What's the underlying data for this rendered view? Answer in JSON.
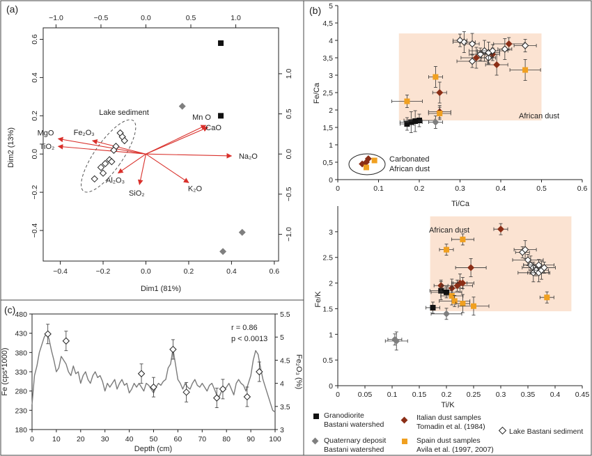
{
  "panels": {
    "a": {
      "label": "(a)",
      "bottom_axis_label": "Dim1 (81%)",
      "left_axis_label": "Dim2 (13%)",
      "ellipse_label": "Lake sediment",
      "bottom_ticks": [
        "−0.4",
        "−0.2",
        "0.0",
        "0.2",
        "0.4",
        "0.6"
      ],
      "left_ticks": [
        "−0.4",
        "−0.2",
        "0.0",
        "0.2",
        "0.4",
        "0.6"
      ],
      "top_ticks": [
        "−1.0",
        "−0.5",
        "0.0",
        "0.5",
        "1.0"
      ],
      "right_ticks": [
        "−1.0",
        "−0.5",
        "0.0",
        "0.5",
        "1.0"
      ],
      "arrow_labels": {
        "mgo": "MgO",
        "fe2o3": "Fe₂O₃",
        "tio2": "TiO₂",
        "al2o3": "Al₂O₃",
        "sio2": "SiO₂",
        "k2o": "K₂O",
        "na2o": "Na₂O",
        "mno": "Mn O",
        "cao": "CaO"
      }
    },
    "b": {
      "label": "(b)",
      "top_ylabel": "Fe/Ca",
      "top_xlabel": "Ti/Ca",
      "top_region_label": "African dust",
      "top_cluster_label_1": "Carbonated",
      "top_cluster_label_2": "African dust",
      "bottom_ylabel": "Fe/K",
      "bottom_xlabel": "Ti/K",
      "bottom_region_label": "African dust"
    },
    "c": {
      "label": "(c)",
      "left_axis_label": "Fe (cps*1000)",
      "right_axis_label": "Fe₂O₃ (%)",
      "xlabel": "Depth (cm)",
      "stat_r": "r = 0.86",
      "stat_p": "p  < 0.0013"
    }
  },
  "legend": {
    "granodiorite_1": "Granodiorite",
    "granodiorite_2": "Bastani watershed",
    "quaternary_1": "Quaternary deposit",
    "quaternary_2": "Bastani watershed",
    "italian_1": "Italian dust samples",
    "italian_2": "Tomadin et al.  (1984)",
    "spain_1": "Spain dust samples",
    "spain_2": "Avila et al.  (1997, 2007)",
    "lake": "Lake Bastani sediment"
  },
  "colors": {
    "arrow": "#d9302b",
    "granodiorite": "#111111",
    "quaternary": "#7f7f7f",
    "italian": "#8b2e16",
    "spain": "#f0a020",
    "lake": "#ffffff",
    "dust_region": "#fbe3d2",
    "fe_line": "#7a7a7a"
  },
  "chart_data": [
    {
      "type": "scatter",
      "panel": "a",
      "title": "",
      "xlabel": "Dim1 (81%)",
      "ylabel": "Dim2 (13%)",
      "xlim": [
        -0.48,
        0.62
      ],
      "ylim": [
        -0.56,
        0.66
      ],
      "secondary_x_ticks": [
        -1.0,
        -0.5,
        0.0,
        0.5,
        1.0
      ],
      "secondary_y_ticks": [
        -1.0,
        -0.5,
        0.0,
        0.5,
        1.0
      ],
      "arrows": [
        {
          "name": "MgO",
          "x": -0.41,
          "y": 0.08
        },
        {
          "name": "Fe₂O₃",
          "x": -0.25,
          "y": 0.07
        },
        {
          "name": "TiO₂",
          "x": -0.41,
          "y": 0.04
        },
        {
          "name": "Al₂O₃",
          "x": -0.13,
          "y": -0.1
        },
        {
          "name": "SiO₂",
          "x": -0.03,
          "y": -0.16
        },
        {
          "name": "K₂O",
          "x": 0.2,
          "y": -0.15
        },
        {
          "name": "Na₂O",
          "x": 0.4,
          "y": -0.01
        },
        {
          "name": "Mn O",
          "x": 0.28,
          "y": 0.15
        },
        {
          "name": "CaO",
          "x": 0.29,
          "y": 0.14
        }
      ],
      "series": [
        {
          "name": "Granodiorite Bastani watershed",
          "points": [
            [
              0.35,
              0.58
            ],
            [
              0.35,
              0.2
            ]
          ]
        },
        {
          "name": "Quaternary deposit Bastani watershed",
          "points": [
            [
              0.17,
              0.25
            ],
            [
              0.45,
              -0.41
            ],
            [
              0.36,
              -0.51
            ]
          ]
        },
        {
          "name": "Lake Bastani sediment",
          "points": [
            [
              -0.12,
              0.11
            ],
            [
              -0.11,
              0.09
            ],
            [
              -0.1,
              0.07
            ],
            [
              -0.14,
              0.04
            ],
            [
              -0.15,
              0.02
            ],
            [
              -0.17,
              -0.03
            ],
            [
              -0.19,
              -0.05
            ],
            [
              -0.21,
              -0.07
            ],
            [
              -0.2,
              -0.1
            ],
            [
              -0.24,
              -0.13
            ],
            [
              -0.16,
              -0.04
            ]
          ]
        }
      ]
    },
    {
      "type": "scatter",
      "panel": "b-top",
      "title": "",
      "xlabel": "Ti/Ca",
      "ylabel": "Fe/Ca",
      "xlim": [
        0,
        0.6
      ],
      "ylim": [
        0,
        5
      ],
      "x_ticks": [
        0,
        0.1,
        0.2,
        0.3,
        0.4,
        0.5,
        0.6
      ],
      "y_ticks": [
        0,
        0.5,
        1,
        1.5,
        2,
        2.5,
        3,
        3.5,
        4,
        4.5,
        5
      ],
      "region": {
        "label": "African dust",
        "x": [
          0.15,
          0.5
        ],
        "y": [
          1.7,
          4.2
        ]
      },
      "series": [
        {
          "name": "Granodiorite Bastani watershed",
          "points": [
            [
              0.17,
              1.6
            ],
            [
              0.18,
              1.65
            ],
            [
              0.2,
              1.7
            ],
            [
              0.19,
              1.68
            ]
          ]
        },
        {
          "name": "Quaternary deposit Bastani watershed",
          "points": [
            [
              0.24,
              1.65
            ]
          ]
        },
        {
          "name": "Italian dust samples Tomadin et al. (1984)",
          "points": [
            [
              0.06,
              0.45
            ],
            [
              0.07,
              0.5
            ],
            [
              0.075,
              0.6
            ],
            [
              0.25,
              2.5
            ],
            [
              0.25,
              1.95
            ],
            [
              0.34,
              3.5
            ],
            [
              0.38,
              3.6
            ],
            [
              0.39,
              3.3
            ],
            [
              0.42,
              3.9
            ]
          ]
        },
        {
          "name": "Spain dust samples Avila et al. (1997, 2007)",
          "points": [
            [
              0.07,
              0.35
            ],
            [
              0.09,
              0.55
            ],
            [
              0.17,
              2.25
            ],
            [
              0.24,
              2.95
            ],
            [
              0.25,
              1.9
            ],
            [
              0.46,
              3.15
            ]
          ]
        },
        {
          "name": "Lake Bastani sediment",
          "points": [
            [
              0.3,
              4.0
            ],
            [
              0.31,
              3.95
            ],
            [
              0.33,
              3.4
            ],
            [
              0.33,
              3.9
            ],
            [
              0.35,
              3.6
            ],
            [
              0.36,
              3.7
            ],
            [
              0.37,
              3.5
            ],
            [
              0.37,
              3.65
            ],
            [
              0.38,
              3.7
            ],
            [
              0.41,
              3.75
            ],
            [
              0.46,
              3.85
            ]
          ]
        }
      ]
    },
    {
      "type": "scatter",
      "panel": "b-bottom",
      "title": "",
      "xlabel": "Ti/K",
      "ylabel": "Fe/K",
      "xlim": [
        0,
        0.45
      ],
      "ylim": [
        0,
        3.5
      ],
      "x_ticks": [
        0,
        0.05,
        0.1,
        0.15,
        0.2,
        0.25,
        0.3,
        0.35,
        0.4,
        0.45
      ],
      "y_ticks": [
        0,
        0.5,
        1,
        1.5,
        2,
        2.5,
        3
      ],
      "region": {
        "label": "African dust",
        "x": [
          0.17,
          0.43
        ],
        "y": [
          1.45,
          3.3
        ]
      },
      "series": [
        {
          "name": "Granodiorite Bastani watershed",
          "points": [
            [
              0.175,
              1.52
            ],
            [
              0.19,
              1.85
            ],
            [
              0.2,
              1.82
            ]
          ]
        },
        {
          "name": "Quaternary deposit Bastani watershed",
          "points": [
            [
              0.105,
              0.9
            ],
            [
              0.108,
              0.87
            ],
            [
              0.2,
              1.4
            ]
          ]
        },
        {
          "name": "Italian dust samples Tomadin et al. (1984)",
          "points": [
            [
              0.19,
              1.95
            ],
            [
              0.21,
              1.9
            ],
            [
              0.22,
              1.95
            ],
            [
              0.225,
              2.0
            ],
            [
              0.23,
              2.0
            ],
            [
              0.245,
              2.3
            ],
            [
              0.3,
              3.05
            ]
          ]
        },
        {
          "name": "Spain dust samples Avila et al. (1997, 2007)",
          "points": [
            [
              0.2,
              2.65
            ],
            [
              0.21,
              1.75
            ],
            [
              0.215,
              1.65
            ],
            [
              0.23,
              1.6
            ],
            [
              0.23,
              2.85
            ],
            [
              0.25,
              1.55
            ],
            [
              0.385,
              1.72
            ]
          ]
        },
        {
          "name": "Lake Bastani sediment",
          "points": [
            [
              0.34,
              2.6
            ],
            [
              0.345,
              2.65
            ],
            [
              0.35,
              2.45
            ],
            [
              0.355,
              2.35
            ],
            [
              0.36,
              2.3
            ],
            [
              0.36,
              2.2
            ],
            [
              0.365,
              2.25
            ],
            [
              0.37,
              2.2
            ],
            [
              0.37,
              2.35
            ],
            [
              0.375,
              2.25
            ],
            [
              0.38,
              2.3
            ]
          ]
        }
      ]
    },
    {
      "type": "line",
      "panel": "c",
      "title": "",
      "xlabel": "Depth (cm)",
      "ylabel": "Fe (cps*1000)",
      "y2label": "Fe₂O₃ (%)",
      "xlim": [
        0,
        100
      ],
      "ylim": [
        180,
        480
      ],
      "y2lim": [
        3,
        5.5
      ],
      "x_ticks": [
        0,
        10,
        20,
        30,
        40,
        50,
        60,
        70,
        80,
        90,
        100
      ],
      "y_ticks": [
        180,
        230,
        280,
        330,
        380,
        430,
        480
      ],
      "y2_ticks": [
        3,
        3.5,
        4,
        4.5,
        5,
        5.5
      ],
      "series": [
        {
          "x": [
            0,
            1,
            2,
            3,
            4,
            5,
            6,
            7,
            8,
            9,
            10,
            11,
            12,
            13,
            14,
            15,
            16,
            17,
            18,
            19,
            20,
            21,
            22,
            23,
            24,
            25,
            26,
            27,
            28,
            29,
            30,
            31,
            32,
            33,
            34,
            35,
            36,
            37,
            38,
            39,
            40,
            41,
            42,
            43,
            44,
            45,
            46,
            47,
            48,
            49,
            50,
            51,
            52,
            53,
            54,
            55,
            56,
            57,
            58,
            59,
            60,
            61,
            62,
            63,
            64,
            65,
            66,
            67,
            68,
            69,
            70,
            71,
            72,
            73,
            74,
            75,
            76,
            77,
            78,
            79,
            80,
            81,
            82,
            83,
            84,
            85,
            86,
            87,
            88,
            89,
            90,
            91,
            92,
            93,
            94,
            95,
            96,
            97,
            98,
            99,
            100
          ],
          "y": [
            245,
            320,
            345,
            380,
            400,
            420,
            430,
            415,
            385,
            360,
            330,
            340,
            370,
            360,
            350,
            330,
            320,
            345,
            325,
            330,
            300,
            320,
            330,
            310,
            300,
            320,
            330,
            315,
            320,
            305,
            280,
            300,
            290,
            300,
            310,
            285,
            300,
            310,
            295,
            300,
            275,
            285,
            300,
            290,
            300,
            290,
            280,
            300,
            295,
            285,
            275,
            290,
            300,
            295,
            305,
            310,
            340,
            350,
            390,
            350,
            310,
            300,
            285,
            300,
            290,
            285,
            300,
            310,
            295,
            290,
            300,
            290,
            280,
            295,
            300,
            285,
            270,
            265,
            280,
            285,
            290,
            300,
            285,
            270,
            300,
            310,
            300,
            295,
            280,
            300,
            320,
            360,
            385,
            375,
            340,
            310,
            290,
            270,
            250,
            230,
            225
          ]
        }
      ],
      "annotations": [
        {
          "label": "r = 0.86"
        },
        {
          "label": "p  < 0.0013"
        }
      ],
      "markers": [
        [
          6.5,
          428
        ],
        [
          14,
          410
        ],
        [
          45,
          325
        ],
        [
          50,
          290
        ],
        [
          58,
          388
        ],
        [
          63.5,
          277
        ],
        [
          76,
          262
        ],
        [
          78.5,
          285
        ],
        [
          88.5,
          265
        ],
        [
          93.5,
          330
        ]
      ]
    }
  ]
}
